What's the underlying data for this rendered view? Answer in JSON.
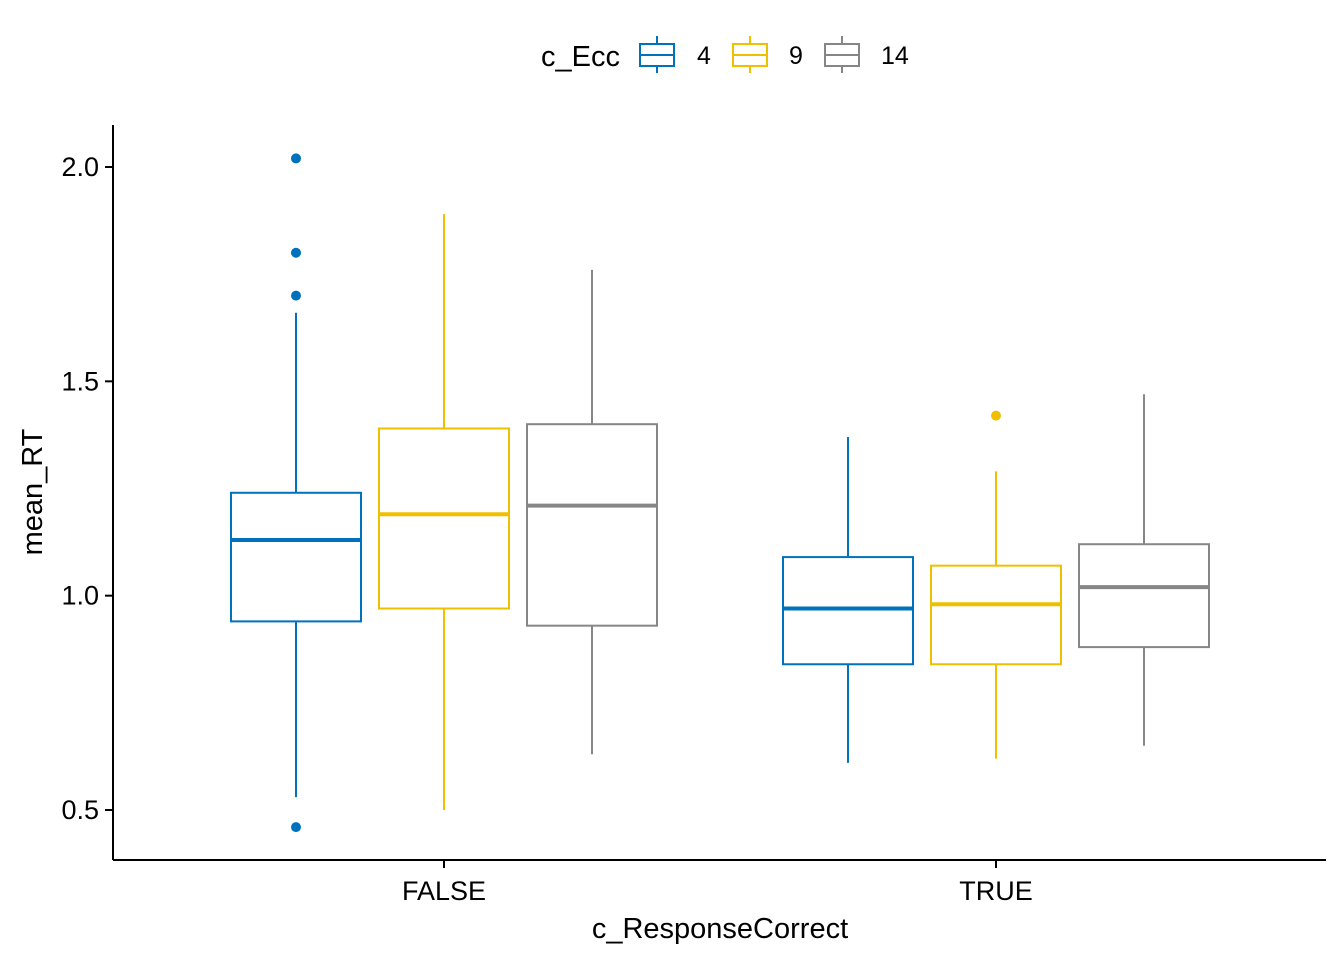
{
  "chart_data": {
    "type": "boxplot",
    "xlabel": "c_ResponseCorrect",
    "ylabel": "mean_RT",
    "categories": [
      "FALSE",
      "TRUE"
    ],
    "ylim": [
      0.38,
      2.1
    ],
    "yticks": [
      0.5,
      1.0,
      1.5,
      2.0
    ],
    "ytick_labels": [
      "0.5",
      "1.0",
      "1.5",
      "2.0"
    ],
    "grid": false,
    "legend": {
      "title": "c_Ecc",
      "position": "top",
      "entries": [
        "4",
        "9",
        "14"
      ]
    },
    "series": [
      {
        "name": "4",
        "color": "#0072BD",
        "boxes": [
          {
            "min": 0.53,
            "q1": 0.94,
            "median": 1.13,
            "q3": 1.24,
            "max": 1.66,
            "outliers": [
              1.7,
              1.8,
              2.02,
              0.46
            ]
          },
          {
            "min": 0.61,
            "q1": 0.84,
            "median": 0.97,
            "q3": 1.09,
            "max": 1.37,
            "outliers": []
          }
        ]
      },
      {
        "name": "9",
        "color": "#EFC000",
        "boxes": [
          {
            "min": 0.5,
            "q1": 0.97,
            "median": 1.19,
            "q3": 1.39,
            "max": 1.89,
            "outliers": []
          },
          {
            "min": 0.62,
            "q1": 0.84,
            "median": 0.98,
            "q3": 1.07,
            "max": 1.29,
            "outliers": [
              1.42
            ]
          }
        ]
      },
      {
        "name": "14",
        "color": "#868686",
        "boxes": [
          {
            "min": 0.63,
            "q1": 0.93,
            "median": 1.21,
            "q3": 1.4,
            "max": 1.76,
            "outliers": []
          },
          {
            "min": 0.65,
            "q1": 0.88,
            "median": 1.02,
            "q3": 1.12,
            "max": 1.47,
            "outliers": []
          }
        ]
      }
    ]
  }
}
